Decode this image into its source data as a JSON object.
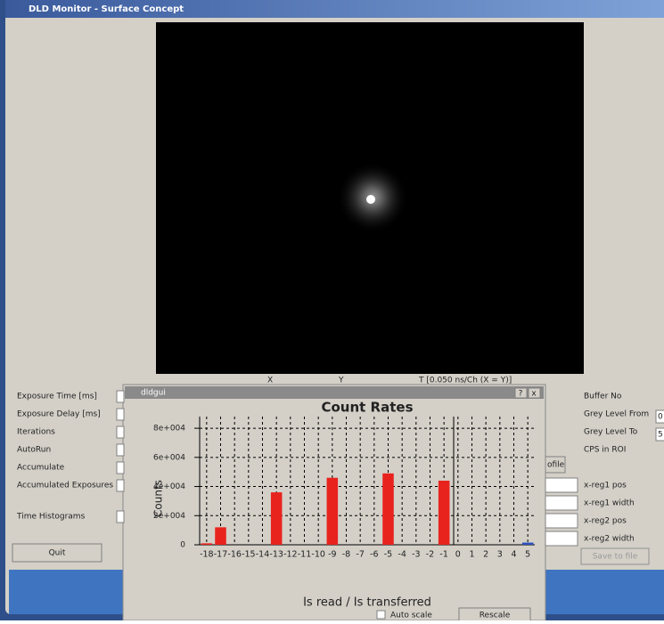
{
  "window": {
    "title": "DLD Monitor - Surface Concept"
  },
  "image_axes": [
    "X",
    "Y",
    "T [0.050 ns/Ch (X = Y)]"
  ],
  "left_panel": {
    "labels": [
      "Exposure Time [ms]",
      "Exposure Delay [ms]",
      "Iterations",
      "AutoRun",
      "Accumulate",
      "Accumulated Exposures",
      "Time Histograms"
    ],
    "quit": "Quit"
  },
  "right_panel": {
    "labels": [
      "Buffer No",
      "Grey Level From",
      "Grey Level To",
      "CPS in ROI",
      "x-reg1 pos",
      "x-reg1 width",
      "x-reg2 pos",
      "x-reg2 width"
    ],
    "grey_from": "0",
    "grey_to": "5",
    "profile_button": "ofile",
    "save": "Save to file"
  },
  "dialog": {
    "title": "dldgui",
    "help": "?",
    "close": "x",
    "auto_scale": "Auto scale",
    "rescale": "Rescale"
  },
  "chart_data": {
    "type": "bar",
    "title": "Count Rates",
    "y_label": "Counts",
    "x_label": "Is read / Is transferred",
    "categories": [
      "-18",
      "-17",
      "-16",
      "-15",
      "-14",
      "-13",
      "-12",
      "-11",
      "-10",
      "-9",
      "-8",
      "-7",
      "-6",
      "-5",
      "-4",
      "-3",
      "-2",
      "-1",
      "0",
      "1",
      "2",
      "3",
      "4",
      "5"
    ],
    "values": [
      1000,
      12000,
      0,
      0,
      0,
      36000,
      0,
      0,
      0,
      46000,
      0,
      0,
      0,
      49000,
      0,
      0,
      0,
      44000,
      0,
      0,
      0,
      0,
      0,
      1500
    ],
    "colors": [
      "#e8231e",
      "#e8231e",
      "#e8231e",
      "#e8231e",
      "#e8231e",
      "#e8231e",
      "#e8231e",
      "#e8231e",
      "#e8231e",
      "#e8231e",
      "#e8231e",
      "#e8231e",
      "#e8231e",
      "#e8231e",
      "#e8231e",
      "#e8231e",
      "#e8231e",
      "#e8231e",
      "#2a4fc0",
      "#2a4fc0",
      "#2a4fc0",
      "#2a4fc0",
      "#2a4fc0",
      "#2a4fc0"
    ],
    "ylim": [
      0,
      88000
    ],
    "yticks": [
      0,
      {
        "value": 20000,
        "label": "2e+004"
      },
      {
        "value": 40000,
        "label": "4e+004"
      },
      {
        "value": 60000,
        "label": "6e+004"
      },
      {
        "value": 80000,
        "label": "8e+004"
      }
    ],
    "grid": true
  }
}
